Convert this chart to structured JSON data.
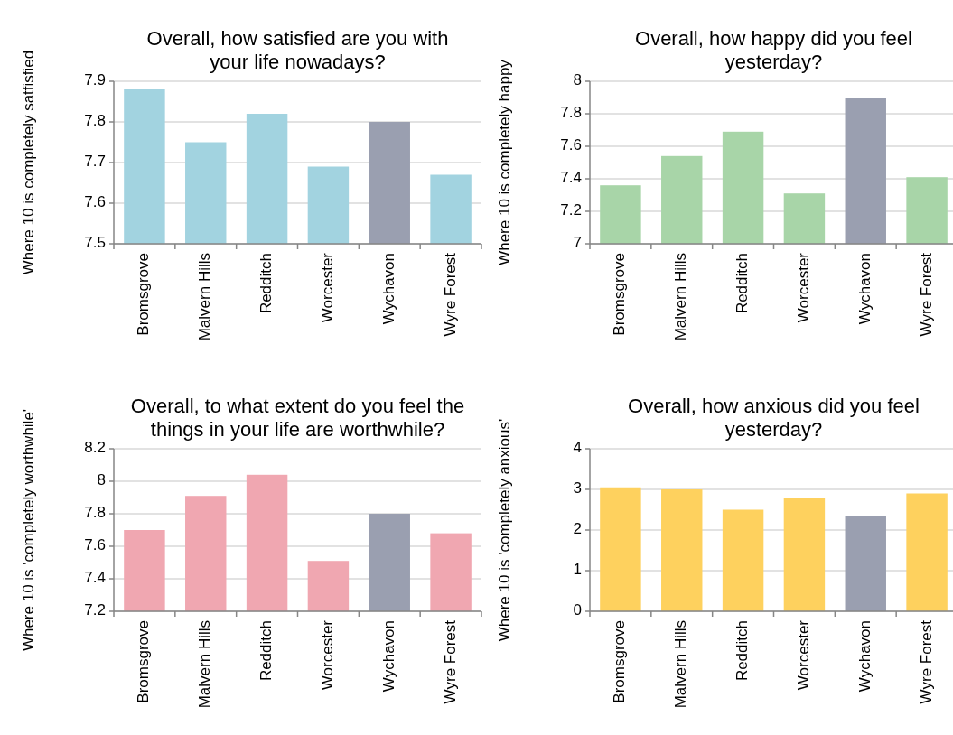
{
  "chart_data": [
    {
      "type": "bar",
      "title": "Overall, how satisfied are you with your life nowadays?",
      "ylabel": "Where 10 is completely satfisfied",
      "categories": [
        "Bromsgrove",
        "Malvern Hills",
        "Redditch",
        "Worcester",
        "Wychavon",
        "Wyre Forest"
      ],
      "values": [
        7.88,
        7.75,
        7.82,
        7.69,
        7.8,
        7.67
      ],
      "colors": [
        "#a2d3e0",
        "#a2d3e0",
        "#a2d3e0",
        "#a2d3e0",
        "#9a9fb0",
        "#a2d3e0"
      ],
      "ylim": [
        7.5,
        7.9
      ],
      "yticks": [
        7.5,
        7.6,
        7.7,
        7.8,
        7.9
      ],
      "grid": "y"
    },
    {
      "type": "bar",
      "title": "Overall, how happy did you feel yesterday?",
      "ylabel": "Where 10 is completely happy",
      "categories": [
        "Bromsgrove",
        "Malvern Hills",
        "Redditch",
        "Worcester",
        "Wychavon",
        "Wyre Forest"
      ],
      "values": [
        7.36,
        7.54,
        7.69,
        7.31,
        7.9,
        7.41
      ],
      "colors": [
        "#a8d5a8",
        "#a8d5a8",
        "#a8d5a8",
        "#a8d5a8",
        "#9a9fb0",
        "#a8d5a8"
      ],
      "ylim": [
        7,
        8
      ],
      "yticks": [
        7,
        7.2,
        7.4,
        7.6,
        7.8,
        8
      ],
      "grid": "y"
    },
    {
      "type": "bar",
      "title": "Overall, to what extent do you feel the things in your life are worthwhile?",
      "ylabel": "Where 10 is 'completely worthwhile'",
      "categories": [
        "Bromsgrove",
        "Malvern Hills",
        "Redditch",
        "Worcester",
        "Wychavon",
        "Wyre Forest"
      ],
      "values": [
        7.7,
        7.91,
        8.04,
        7.51,
        7.8,
        7.68
      ],
      "colors": [
        "#f0a7b1",
        "#f0a7b1",
        "#f0a7b1",
        "#f0a7b1",
        "#9a9fb0",
        "#f0a7b1"
      ],
      "ylim": [
        7.2,
        8.2
      ],
      "yticks": [
        7.2,
        7.4,
        7.6,
        7.8,
        8,
        8.2
      ],
      "grid": "y"
    },
    {
      "type": "bar",
      "title": "Overall, how anxious did you feel yesterday?",
      "ylabel": "Where 10 is 'completely anxious'",
      "categories": [
        "Bromsgrove",
        "Malvern Hills",
        "Redditch",
        "Worcester",
        "Wychavon",
        "Wyre Forest"
      ],
      "values": [
        3.05,
        3.0,
        2.5,
        2.8,
        2.35,
        2.9
      ],
      "colors": [
        "#fed15e",
        "#fed15e",
        "#fed15e",
        "#fed15e",
        "#9a9fb0",
        "#fed15e"
      ],
      "ylim": [
        0,
        4
      ],
      "yticks": [
        0,
        1,
        2,
        3,
        4
      ],
      "grid": "y"
    }
  ]
}
